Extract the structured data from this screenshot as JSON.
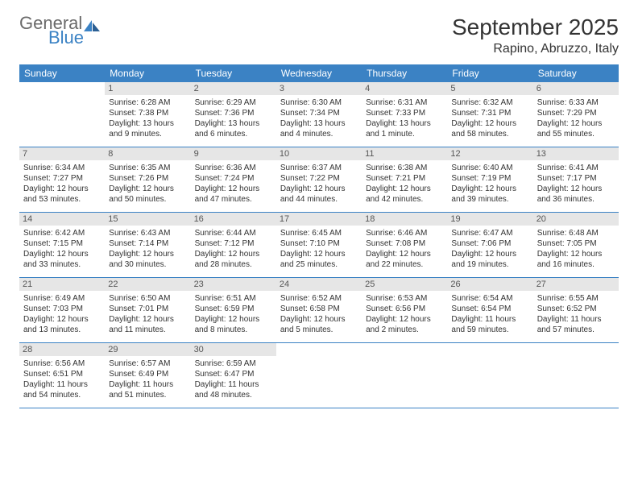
{
  "logo": {
    "text_gray": "General",
    "text_blue": "Blue"
  },
  "title": "September 2025",
  "location": "Rapino, Abruzzo, Italy",
  "weekdays": [
    "Sunday",
    "Monday",
    "Tuesday",
    "Wednesday",
    "Thursday",
    "Friday",
    "Saturday"
  ],
  "colors": {
    "header_bg": "#3b82c4",
    "header_text": "#ffffff",
    "daynum_bg": "#e6e6e6",
    "row_border": "#3b82c4",
    "body_text": "#333333",
    "logo_gray": "#6a6a6a",
    "logo_blue": "#3b82c4"
  },
  "typography": {
    "title_fontsize": 28,
    "location_fontsize": 16,
    "weekday_fontsize": 12,
    "cell_fontsize": 10,
    "daynum_fontsize": 11
  },
  "weeks": [
    [
      {
        "day": "",
        "lines": []
      },
      {
        "day": "1",
        "lines": [
          "Sunrise: 6:28 AM",
          "Sunset: 7:38 PM",
          "Daylight: 13 hours and 9 minutes."
        ]
      },
      {
        "day": "2",
        "lines": [
          "Sunrise: 6:29 AM",
          "Sunset: 7:36 PM",
          "Daylight: 13 hours and 6 minutes."
        ]
      },
      {
        "day": "3",
        "lines": [
          "Sunrise: 6:30 AM",
          "Sunset: 7:34 PM",
          "Daylight: 13 hours and 4 minutes."
        ]
      },
      {
        "day": "4",
        "lines": [
          "Sunrise: 6:31 AM",
          "Sunset: 7:33 PM",
          "Daylight: 13 hours and 1 minute."
        ]
      },
      {
        "day": "5",
        "lines": [
          "Sunrise: 6:32 AM",
          "Sunset: 7:31 PM",
          "Daylight: 12 hours and 58 minutes."
        ]
      },
      {
        "day": "6",
        "lines": [
          "Sunrise: 6:33 AM",
          "Sunset: 7:29 PM",
          "Daylight: 12 hours and 55 minutes."
        ]
      }
    ],
    [
      {
        "day": "7",
        "lines": [
          "Sunrise: 6:34 AM",
          "Sunset: 7:27 PM",
          "Daylight: 12 hours and 53 minutes."
        ]
      },
      {
        "day": "8",
        "lines": [
          "Sunrise: 6:35 AM",
          "Sunset: 7:26 PM",
          "Daylight: 12 hours and 50 minutes."
        ]
      },
      {
        "day": "9",
        "lines": [
          "Sunrise: 6:36 AM",
          "Sunset: 7:24 PM",
          "Daylight: 12 hours and 47 minutes."
        ]
      },
      {
        "day": "10",
        "lines": [
          "Sunrise: 6:37 AM",
          "Sunset: 7:22 PM",
          "Daylight: 12 hours and 44 minutes."
        ]
      },
      {
        "day": "11",
        "lines": [
          "Sunrise: 6:38 AM",
          "Sunset: 7:21 PM",
          "Daylight: 12 hours and 42 minutes."
        ]
      },
      {
        "day": "12",
        "lines": [
          "Sunrise: 6:40 AM",
          "Sunset: 7:19 PM",
          "Daylight: 12 hours and 39 minutes."
        ]
      },
      {
        "day": "13",
        "lines": [
          "Sunrise: 6:41 AM",
          "Sunset: 7:17 PM",
          "Daylight: 12 hours and 36 minutes."
        ]
      }
    ],
    [
      {
        "day": "14",
        "lines": [
          "Sunrise: 6:42 AM",
          "Sunset: 7:15 PM",
          "Daylight: 12 hours and 33 minutes."
        ]
      },
      {
        "day": "15",
        "lines": [
          "Sunrise: 6:43 AM",
          "Sunset: 7:14 PM",
          "Daylight: 12 hours and 30 minutes."
        ]
      },
      {
        "day": "16",
        "lines": [
          "Sunrise: 6:44 AM",
          "Sunset: 7:12 PM",
          "Daylight: 12 hours and 28 minutes."
        ]
      },
      {
        "day": "17",
        "lines": [
          "Sunrise: 6:45 AM",
          "Sunset: 7:10 PM",
          "Daylight: 12 hours and 25 minutes."
        ]
      },
      {
        "day": "18",
        "lines": [
          "Sunrise: 6:46 AM",
          "Sunset: 7:08 PM",
          "Daylight: 12 hours and 22 minutes."
        ]
      },
      {
        "day": "19",
        "lines": [
          "Sunrise: 6:47 AM",
          "Sunset: 7:06 PM",
          "Daylight: 12 hours and 19 minutes."
        ]
      },
      {
        "day": "20",
        "lines": [
          "Sunrise: 6:48 AM",
          "Sunset: 7:05 PM",
          "Daylight: 12 hours and 16 minutes."
        ]
      }
    ],
    [
      {
        "day": "21",
        "lines": [
          "Sunrise: 6:49 AM",
          "Sunset: 7:03 PM",
          "Daylight: 12 hours and 13 minutes."
        ]
      },
      {
        "day": "22",
        "lines": [
          "Sunrise: 6:50 AM",
          "Sunset: 7:01 PM",
          "Daylight: 12 hours and 11 minutes."
        ]
      },
      {
        "day": "23",
        "lines": [
          "Sunrise: 6:51 AM",
          "Sunset: 6:59 PM",
          "Daylight: 12 hours and 8 minutes."
        ]
      },
      {
        "day": "24",
        "lines": [
          "Sunrise: 6:52 AM",
          "Sunset: 6:58 PM",
          "Daylight: 12 hours and 5 minutes."
        ]
      },
      {
        "day": "25",
        "lines": [
          "Sunrise: 6:53 AM",
          "Sunset: 6:56 PM",
          "Daylight: 12 hours and 2 minutes."
        ]
      },
      {
        "day": "26",
        "lines": [
          "Sunrise: 6:54 AM",
          "Sunset: 6:54 PM",
          "Daylight: 11 hours and 59 minutes."
        ]
      },
      {
        "day": "27",
        "lines": [
          "Sunrise: 6:55 AM",
          "Sunset: 6:52 PM",
          "Daylight: 11 hours and 57 minutes."
        ]
      }
    ],
    [
      {
        "day": "28",
        "lines": [
          "Sunrise: 6:56 AM",
          "Sunset: 6:51 PM",
          "Daylight: 11 hours and 54 minutes."
        ]
      },
      {
        "day": "29",
        "lines": [
          "Sunrise: 6:57 AM",
          "Sunset: 6:49 PM",
          "Daylight: 11 hours and 51 minutes."
        ]
      },
      {
        "day": "30",
        "lines": [
          "Sunrise: 6:59 AM",
          "Sunset: 6:47 PM",
          "Daylight: 11 hours and 48 minutes."
        ]
      },
      {
        "day": "",
        "lines": []
      },
      {
        "day": "",
        "lines": []
      },
      {
        "day": "",
        "lines": []
      },
      {
        "day": "",
        "lines": []
      }
    ]
  ]
}
